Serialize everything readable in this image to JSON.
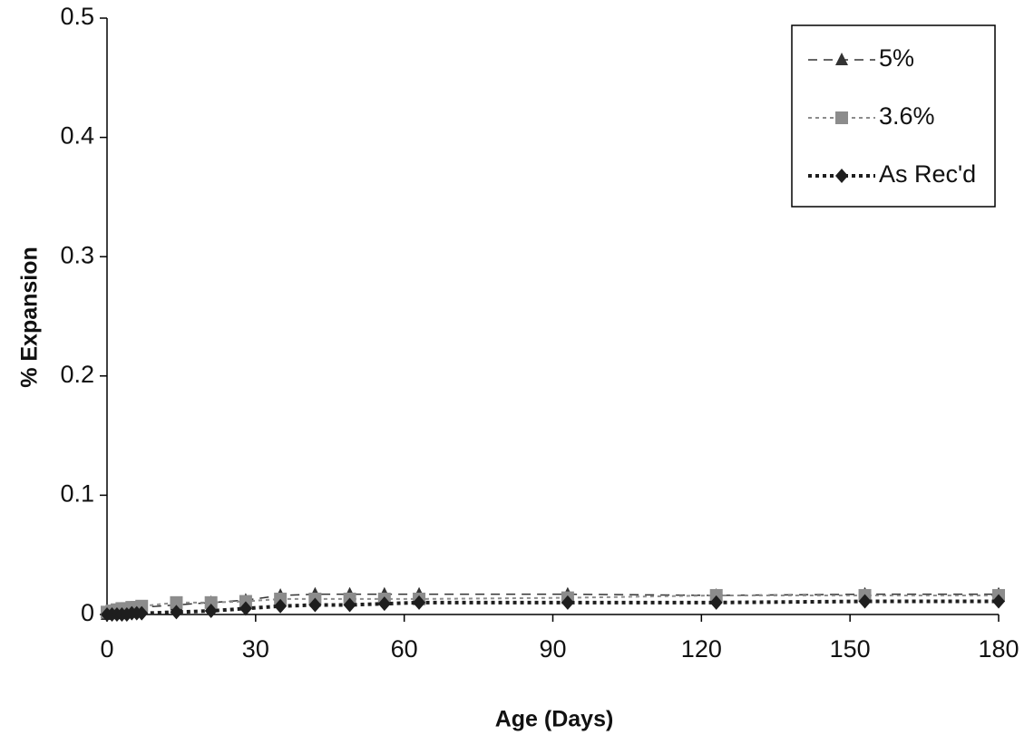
{
  "chart_data": {
    "type": "line",
    "x_label": "Age (Days)",
    "y_label": "% Expansion",
    "x": [
      0,
      1,
      2,
      3,
      4,
      5,
      6,
      7,
      14,
      21,
      28,
      35,
      42,
      49,
      56,
      63,
      93,
      123,
      153,
      180
    ],
    "series": [
      {
        "name": "5%",
        "color": "#333333",
        "marker": "triangle",
        "dash": "10 7",
        "width": 1.5,
        "values": [
          0,
          0.002,
          0.003,
          0.004,
          0.004,
          0.005,
          0.005,
          0.006,
          0.008,
          0.01,
          0.012,
          0.016,
          0.017,
          0.017,
          0.017,
          0.017,
          0.017,
          0.016,
          0.017,
          0.017
        ]
      },
      {
        "name": "3.6%",
        "color": "#8c8c8c",
        "marker": "square",
        "dash": "4 4",
        "width": 2,
        "values": [
          0.002,
          0.003,
          0.004,
          0.005,
          0.005,
          0.006,
          0.006,
          0.007,
          0.01,
          0.01,
          0.011,
          0.013,
          0.013,
          0.013,
          0.013,
          0.013,
          0.014,
          0.016,
          0.016,
          0.016
        ]
      },
      {
        "name": "As Rec'd",
        "color": "#1e1e1e",
        "marker": "diamond",
        "dash": "4 4",
        "width": 4,
        "values": [
          0,
          0,
          0,
          0,
          0,
          0.001,
          0.001,
          0.001,
          0.002,
          0.003,
          0.005,
          0.007,
          0.008,
          0.008,
          0.009,
          0.01,
          0.01,
          0.01,
          0.011,
          0.011
        ]
      }
    ],
    "xlim": [
      0,
      180
    ],
    "xticks": [
      0,
      30,
      60,
      90,
      120,
      150,
      180
    ],
    "ylim": [
      0,
      0.5
    ],
    "yticks": [
      0,
      0.1,
      0.2,
      0.3,
      0.4,
      0.5
    ],
    "legend": "upper right"
  }
}
